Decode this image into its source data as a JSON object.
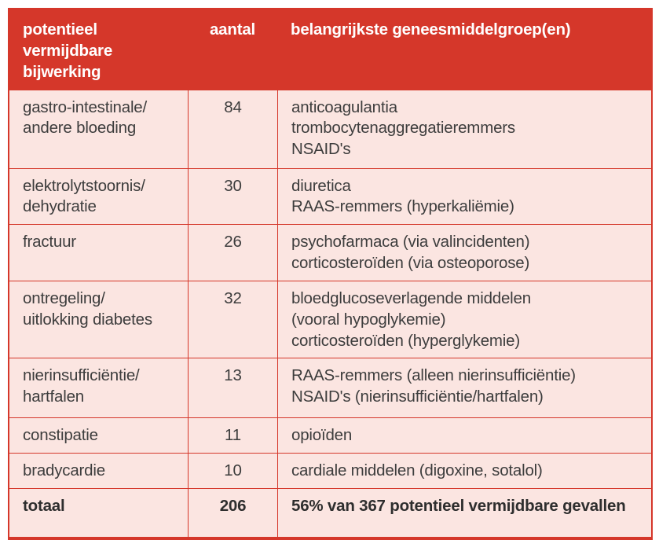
{
  "meta": {
    "language": "nl",
    "colors": {
      "header_background": "#d5372a",
      "row_background": "#fbe5e1",
      "border": "#d5372a",
      "header_text": "#ffffff",
      "body_text": "#3d3d3d"
    }
  },
  "table": {
    "header": {
      "effect": "potentieel\nvermijdbare\nbijwerking",
      "count": "aantal",
      "groups": "belangrijkste geneesmiddelgroep(en)"
    },
    "rows": [
      {
        "effect": "gastro-intestinale/\nandere bloeding",
        "count": "84",
        "groups": "anticoagulantia\ntrombocytenaggregatieremmers\nNSAID's"
      },
      {
        "effect": "elektrolytstoornis/\ndehydratie",
        "count": "30",
        "groups": "diuretica\nRAAS-remmers (hyperkaliëmie)"
      },
      {
        "effect": "fractuur",
        "count": "26",
        "groups": "psychofarmaca (via valincidenten)\ncorticosteroïden (via osteoporose)"
      },
      {
        "effect": "ontregeling/\nuitlokking diabetes",
        "count": "32",
        "groups": "bloedglucoseverlagende middelen\n(vooral hypoglykemie)\ncorticosteroïden (hyperglykemie)"
      },
      {
        "effect": "nierinsufficiëntie/\nhartfalen",
        "count": "13",
        "groups": "RAAS-remmers (alleen nierinsufficiëntie)\nNSAID's (nierinsufficiëntie/hartfalen)"
      },
      {
        "effect": "constipatie",
        "count": "11",
        "groups": "opioïden"
      },
      {
        "effect": "bradycardie",
        "count": "10",
        "groups": "cardiale middelen (digoxine, sotalol)"
      },
      {
        "effect": "totaal",
        "count": "206",
        "groups": "56% van 367 potentieel vermijdbare gevallen"
      }
    ]
  },
  "chart_data": {
    "type": "table",
    "title": "",
    "columns": [
      "potentieel vermijdbare bijwerking",
      "aantal",
      "belangrijkste geneesmiddelgroep(en)"
    ],
    "categories": [
      "gastro-intestinale/andere bloeding",
      "elektrolytstoornis/dehydratie",
      "fractuur",
      "ontregeling/uitlokking diabetes",
      "nierinsufficiëntie/hartfalen",
      "constipatie",
      "bradycardie"
    ],
    "values": [
      84,
      30,
      26,
      32,
      13,
      11,
      10
    ],
    "total": 206,
    "total_note": "56% van 367 potentieel vermijdbare gevallen"
  }
}
